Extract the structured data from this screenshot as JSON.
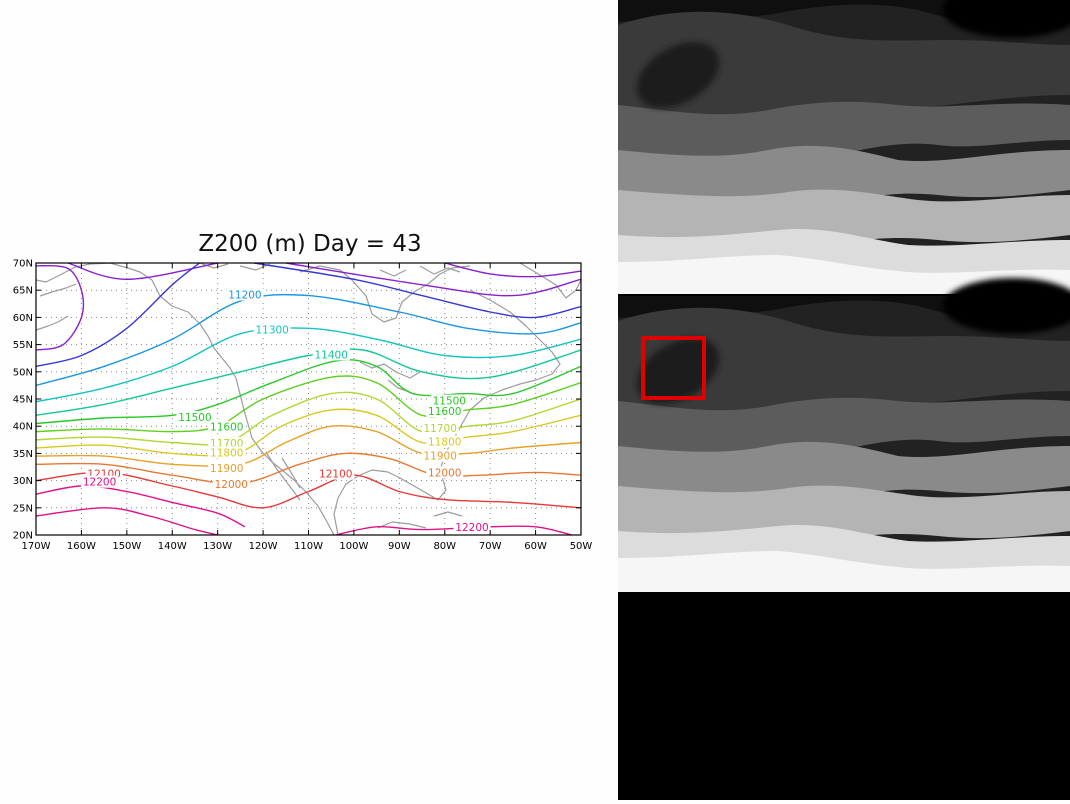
{
  "chart_data": {
    "type": "contour",
    "title": "Z200 (m) Day = 43",
    "xlabel": "",
    "ylabel": "",
    "xlim": [
      -170,
      -50
    ],
    "ylim": [
      20,
      70
    ],
    "x_ticks": [
      "170W",
      "160W",
      "150W",
      "140W",
      "130W",
      "120W",
      "110W",
      "100W",
      "90W",
      "80W",
      "70W",
      "60W",
      "50W"
    ],
    "y_ticks": [
      "20N",
      "25N",
      "30N",
      "35N",
      "40N",
      "45N",
      "50N",
      "55N",
      "60N",
      "65N",
      "70N"
    ],
    "grid": true,
    "series": [
      {
        "level": 11000,
        "color": "#8a1fd0",
        "points": [
          [
            -170,
            54.0
          ],
          [
            -164,
            55.0
          ],
          [
            -160,
            60.0
          ],
          [
            -160,
            65.0
          ],
          [
            -163,
            69.0
          ],
          [
            -170,
            69.5
          ]
        ]
      },
      {
        "level": 11000,
        "color": "#8a1fd0",
        "points": [
          [
            -163,
            70
          ],
          [
            -150,
            67
          ],
          [
            -130,
            70
          ]
        ]
      },
      {
        "level": 11000,
        "color": "#8a1fd0",
        "points": [
          [
            -115,
            70
          ],
          [
            -85,
            66
          ],
          [
            -65,
            64
          ],
          [
            -50,
            67
          ]
        ]
      },
      {
        "level": 11000,
        "color": "#8a1fd0",
        "points": [
          [
            -80,
            70
          ],
          [
            -70,
            68
          ],
          [
            -60,
            67.5
          ],
          [
            -50,
            68.5
          ]
        ]
      },
      {
        "level": 11100,
        "color": "#3838d8",
        "points": [
          [
            -170,
            51
          ],
          [
            -160,
            53
          ],
          [
            -150,
            58
          ],
          [
            -140,
            66
          ],
          [
            -134,
            70
          ]
        ]
      },
      {
        "level": 11100,
        "color": "#3838d8",
        "points": [
          [
            -122,
            70
          ],
          [
            -100,
            67
          ],
          [
            -85,
            64
          ],
          [
            -70,
            61
          ],
          [
            -60,
            60
          ],
          [
            -50,
            62
          ]
        ]
      },
      {
        "level": 11200,
        "color": "#1a96e0",
        "points": [
          [
            -170,
            47.5
          ],
          [
            -155,
            51
          ],
          [
            -140,
            56
          ],
          [
            -125,
            63
          ],
          [
            -110,
            64
          ],
          [
            -90,
            61
          ],
          [
            -75,
            58
          ],
          [
            -60,
            57
          ],
          [
            -50,
            59
          ]
        ]
      },
      {
        "level": 11300,
        "color": "#12c4c4",
        "points": [
          [
            -170,
            44.5
          ],
          [
            -155,
            47
          ],
          [
            -140,
            51
          ],
          [
            -125,
            57
          ],
          [
            -110,
            58
          ],
          [
            -95,
            56
          ],
          [
            -80,
            53
          ],
          [
            -65,
            53
          ],
          [
            -50,
            56
          ]
        ]
      },
      {
        "level": 11400,
        "color": "#10c898",
        "points": [
          [
            -170,
            42
          ],
          [
            -155,
            44
          ],
          [
            -140,
            47
          ],
          [
            -125,
            50
          ],
          [
            -110,
            53
          ],
          [
            -98,
            54
          ],
          [
            -85,
            50
          ],
          [
            -70,
            49
          ],
          [
            -50,
            54
          ]
        ]
      },
      {
        "level": 11500,
        "color": "#28c828",
        "points": [
          [
            -170,
            40.5
          ],
          [
            -155,
            41.5
          ],
          [
            -140,
            42
          ],
          [
            -130,
            44
          ],
          [
            -118,
            48
          ],
          [
            -104,
            52
          ],
          [
            -95,
            51
          ],
          [
            -87,
            46
          ],
          [
            -75,
            46
          ],
          [
            -65,
            46
          ],
          [
            -50,
            51
          ]
        ]
      },
      {
        "level": 11600,
        "color": "#60d020",
        "points": [
          [
            -170,
            39
          ],
          [
            -155,
            39.5
          ],
          [
            -140,
            39
          ],
          [
            -130,
            40
          ],
          [
            -120,
            45
          ],
          [
            -105,
            49
          ],
          [
            -95,
            48
          ],
          [
            -85,
            42
          ],
          [
            -75,
            43
          ],
          [
            -65,
            44
          ],
          [
            -50,
            48
          ]
        ]
      },
      {
        "level": 11700,
        "color": "#b0d830",
        "points": [
          [
            -170,
            37.5
          ],
          [
            -155,
            38
          ],
          [
            -140,
            37
          ],
          [
            -128,
            37
          ],
          [
            -118,
            42
          ],
          [
            -105,
            46
          ],
          [
            -95,
            45
          ],
          [
            -85,
            39
          ],
          [
            -75,
            40
          ],
          [
            -65,
            41
          ],
          [
            -50,
            45
          ]
        ]
      },
      {
        "level": 11800,
        "color": "#d8c820",
        "points": [
          [
            -170,
            36
          ],
          [
            -155,
            36.5
          ],
          [
            -140,
            35
          ],
          [
            -126,
            35
          ],
          [
            -116,
            40
          ],
          [
            -105,
            43
          ],
          [
            -95,
            42
          ],
          [
            -85,
            37
          ],
          [
            -75,
            38
          ],
          [
            -65,
            39
          ],
          [
            -50,
            42
          ]
        ]
      },
      {
        "level": 11900,
        "color": "#e8a028",
        "points": [
          [
            -170,
            34.5
          ],
          [
            -155,
            34.5
          ],
          [
            -140,
            33
          ],
          [
            -125,
            33
          ],
          [
            -115,
            37
          ],
          [
            -105,
            40
          ],
          [
            -95,
            39
          ],
          [
            -85,
            35
          ],
          [
            -75,
            35
          ],
          [
            -65,
            36
          ],
          [
            -50,
            37
          ]
        ]
      },
      {
        "level": 12000,
        "color": "#e87830",
        "points": [
          [
            -170,
            33
          ],
          [
            -155,
            33
          ],
          [
            -140,
            31
          ],
          [
            -125,
            29.5
          ],
          [
            -112,
            33
          ],
          [
            -102,
            35
          ],
          [
            -92,
            34
          ],
          [
            -82,
            31
          ],
          [
            -72,
            31
          ],
          [
            -60,
            31.5
          ],
          [
            -50,
            31
          ]
        ]
      },
      {
        "level": 12100,
        "color": "#e83838",
        "points": [
          [
            -170,
            30
          ],
          [
            -155,
            31.5
          ],
          [
            -140,
            29
          ],
          [
            -130,
            27
          ],
          [
            -120,
            25
          ],
          [
            -110,
            28
          ],
          [
            -100,
            31
          ],
          [
            -90,
            28
          ],
          [
            -80,
            26.5
          ],
          [
            -65,
            26
          ],
          [
            -50,
            25
          ]
        ]
      },
      {
        "level": 12200,
        "color": "#e0108c",
        "points": [
          [
            -170,
            27.5
          ],
          [
            -160,
            29
          ],
          [
            -150,
            28
          ],
          [
            -140,
            26
          ],
          [
            -130,
            24
          ],
          [
            -124,
            21.5
          ]
        ]
      },
      {
        "level": 12200,
        "color": "#e0108c",
        "points": [
          [
            -170,
            23.5
          ],
          [
            -155,
            25
          ],
          [
            -145,
            23.5
          ],
          [
            -135,
            21
          ],
          [
            -130,
            20
          ]
        ]
      },
      {
        "level": 12200,
        "color": "#e0108c",
        "points": [
          [
            -104,
            20
          ],
          [
            -95,
            21.5
          ],
          [
            -85,
            21
          ],
          [
            -70,
            21.5
          ],
          [
            -60,
            21.5
          ],
          [
            -52,
            20
          ]
        ]
      }
    ],
    "contour_labels": [
      {
        "text": "11200",
        "x": -124,
        "y": 64.2,
        "color": "#1a96e0"
      },
      {
        "text": "11300",
        "x": -118,
        "y": 57.8,
        "color": "#12c4c4"
      },
      {
        "text": "11400",
        "x": -105,
        "y": 53.2,
        "color": "#10c898"
      },
      {
        "text": "11500",
        "x": -135,
        "y": 41.7,
        "color": "#28c828"
      },
      {
        "text": "11500",
        "x": -79,
        "y": 44.7,
        "color": "#28c828"
      },
      {
        "text": "11600",
        "x": -128,
        "y": 39.9,
        "color": "#28c828"
      },
      {
        "text": "11600",
        "x": -80,
        "y": 42.8,
        "color": "#28c828"
      },
      {
        "text": "11700",
        "x": -128,
        "y": 36.9,
        "color": "#b0d830"
      },
      {
        "text": "11700",
        "x": -81,
        "y": 39.7,
        "color": "#b0d830"
      },
      {
        "text": "11800",
        "x": -128,
        "y": 35.2,
        "color": "#d8c820"
      },
      {
        "text": "11800",
        "x": -80,
        "y": 37.2,
        "color": "#d8c820"
      },
      {
        "text": "11900",
        "x": -128,
        "y": 32.3,
        "color": "#e8a028"
      },
      {
        "text": "11900",
        "x": -81,
        "y": 34.6,
        "color": "#e8a028"
      },
      {
        "text": "12000",
        "x": -127,
        "y": 29.4,
        "color": "#e87830"
      },
      {
        "text": "12000",
        "x": -80,
        "y": 31.5,
        "color": "#e87830"
      },
      {
        "text": "12100",
        "x": -155,
        "y": 31.3,
        "color": "#e83838"
      },
      {
        "text": "12100",
        "x": -104,
        "y": 31.3,
        "color": "#e83838"
      },
      {
        "text": "12200",
        "x": -156,
        "y": 29.8,
        "color": "#e0108c"
      },
      {
        "text": "12200",
        "x": -74,
        "y": 21.5,
        "color": "#e0108c"
      }
    ]
  },
  "colors": {
    "coastline": "#9c9c9c",
    "grid": "#888888",
    "highlight_box": "#e00000"
  }
}
